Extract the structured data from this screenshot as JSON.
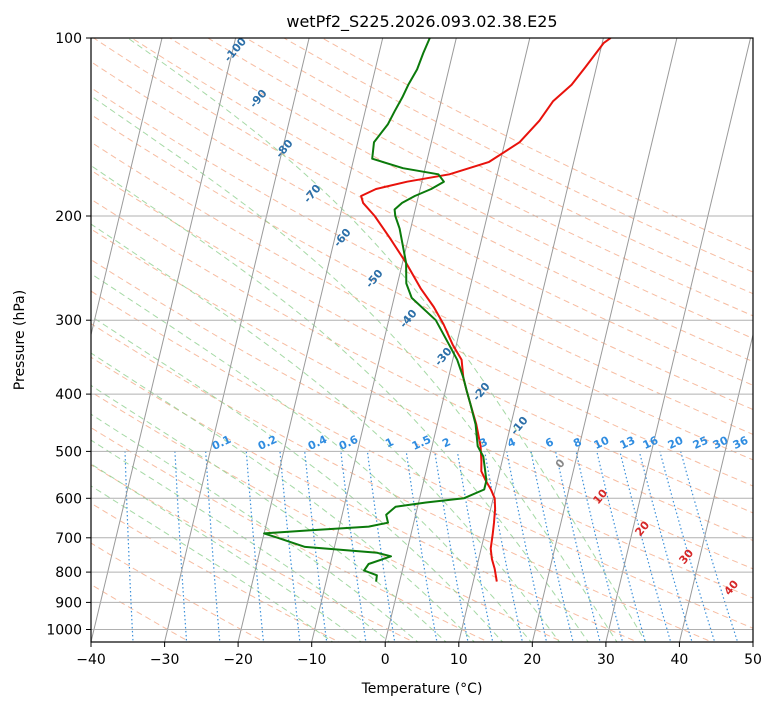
{
  "chart_data": {
    "type": "line",
    "subtype": "skew-t log-p diagram",
    "title": "wetPf2_S225.2026.093.02.38.E25",
    "xlabel": "Temperature (°C)",
    "ylabel": "Pressure (hPa)",
    "xlim": [
      -40,
      50
    ],
    "ylim": [
      1050,
      100
    ],
    "x_ticks": [
      -40,
      -30,
      -20,
      -10,
      0,
      10,
      20,
      30,
      40,
      50
    ],
    "y_ticks": [
      1000,
      900,
      800,
      700,
      600,
      500,
      400,
      300,
      200,
      100
    ],
    "colors": {
      "temperature": "#e8120c",
      "dewpoint": "#0b7a0b",
      "isotherm": "#9a9a9a",
      "dry_adiabat": "#f4a582",
      "moist_adiabat": "#8fcf8f",
      "mixing_ratio": "#3b8fd9",
      "mixing_label": "#2f8ce0",
      "dry_label": "#2c6fa8",
      "moist_label": "#d62728",
      "zero_label": "#888888",
      "grid": "#b0b0b0"
    },
    "series": [
      {
        "name": "Temperature",
        "points": [
          [
            13.2,
            830
          ],
          [
            12.5,
            790
          ],
          [
            11.8,
            760
          ],
          [
            11.3,
            730
          ],
          [
            11.1,
            690
          ],
          [
            10.9,
            660
          ],
          [
            10.6,
            625
          ],
          [
            10.2,
            600
          ],
          [
            9.4,
            580
          ],
          [
            8.4,
            560
          ],
          [
            7.5,
            540
          ],
          [
            7.2,
            520
          ],
          [
            6.6,
            490
          ],
          [
            5.3,
            450
          ],
          [
            3.8,
            415
          ],
          [
            2.9,
            395
          ],
          [
            2.0,
            375
          ],
          [
            1.2,
            350
          ],
          [
            -0.5,
            330
          ],
          [
            -2.4,
            305
          ],
          [
            -4.3,
            285
          ],
          [
            -6.7,
            265
          ],
          [
            -9.5,
            240
          ],
          [
            -12.5,
            218
          ],
          [
            -15.3,
            200
          ],
          [
            -17.3,
            190
          ],
          [
            -17.8,
            185
          ],
          [
            -16.0,
            180
          ],
          [
            -12.0,
            175
          ],
          [
            -6.5,
            170
          ],
          [
            -1.5,
            162
          ],
          [
            2.0,
            150
          ],
          [
            4.0,
            138
          ],
          [
            5.2,
            128
          ],
          [
            7.2,
            120
          ],
          [
            8.5,
            112
          ],
          [
            10.2,
            102
          ],
          [
            11.0,
            100
          ]
        ]
      },
      {
        "name": "Dewpoint",
        "points": [
          [
            -3.2,
            830
          ],
          [
            -3.3,
            810
          ],
          [
            -5.2,
            795
          ],
          [
            -4.8,
            775
          ],
          [
            -2.0,
            752
          ],
          [
            -4.0,
            742
          ],
          [
            -14.0,
            725
          ],
          [
            -18.0,
            700
          ],
          [
            -20.0,
            688
          ],
          [
            -14.0,
            680
          ],
          [
            -6.0,
            670
          ],
          [
            -3.5,
            660
          ],
          [
            -4.0,
            640
          ],
          [
            -3.0,
            620
          ],
          [
            1.0,
            610
          ],
          [
            6.0,
            600
          ],
          [
            8.5,
            580
          ],
          [
            8.5,
            560
          ],
          [
            7.8,
            530
          ],
          [
            7.3,
            510
          ],
          [
            6.2,
            490
          ],
          [
            5.2,
            450
          ],
          [
            3.8,
            415
          ],
          [
            2.9,
            395
          ],
          [
            2.0,
            375
          ],
          [
            0.6,
            350
          ],
          [
            -1.0,
            330
          ],
          [
            -3.6,
            300
          ],
          [
            -7.6,
            275
          ],
          [
            -8.8,
            260
          ],
          [
            -9.5,
            240
          ],
          [
            -11.5,
            210
          ],
          [
            -12.5,
            200
          ],
          [
            -12.8,
            195
          ],
          [
            -12.0,
            190
          ],
          [
            -10.5,
            185
          ],
          [
            -8.5,
            180
          ],
          [
            -7.0,
            175
          ],
          [
            -8.0,
            170
          ],
          [
            -13.0,
            166
          ],
          [
            -17.5,
            160
          ],
          [
            -17.8,
            150
          ],
          [
            -16.5,
            140
          ],
          [
            -16.0,
            133
          ],
          [
            -15.4,
            126
          ],
          [
            -15.0,
            120
          ],
          [
            -14.3,
            113
          ],
          [
            -14.0,
            106
          ],
          [
            -13.6,
            100
          ]
        ]
      }
    ],
    "dry_adiabat_labels": [
      "-100",
      "-90",
      "-80",
      "-70",
      "-60",
      "-50",
      "-40",
      "-30",
      "-20",
      "-10"
    ],
    "mixing_ratio_labels": [
      "0.1",
      "0.2",
      "0.4",
      "0.6",
      "1",
      "1.5",
      "2",
      "3",
      "4",
      "6",
      "8",
      "10",
      "13",
      "16",
      "20",
      "25",
      "30",
      "36"
    ],
    "moist_adiabat_labels": [
      "0",
      "10",
      "20",
      "30",
      "40"
    ]
  }
}
